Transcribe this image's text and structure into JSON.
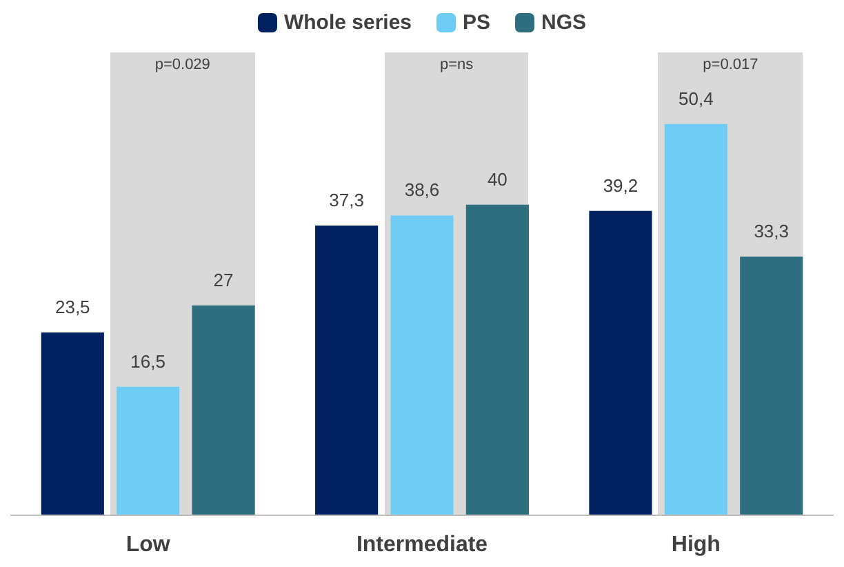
{
  "chart_data": {
    "type": "bar",
    "categories": [
      "Low",
      "Intermediate",
      "High"
    ],
    "series": [
      {
        "name": "Whole series",
        "color": "#002060",
        "values": [
          23.5,
          37.3,
          39.2
        ],
        "value_labels": [
          "23,5",
          "37,3",
          "39,2"
        ]
      },
      {
        "name": "PS",
        "color": "#6fcdf5",
        "values": [
          16.5,
          38.6,
          50.4
        ],
        "value_labels": [
          "16,5",
          "38,6",
          "50,4"
        ]
      },
      {
        "name": "NGS",
        "color": "#2e6e7e",
        "values": [
          27,
          40,
          33.3
        ],
        "value_labels": [
          "27",
          "40",
          "33,3"
        ]
      }
    ],
    "legend": "top",
    "bands": [
      {
        "axis": "x",
        "from": "Low",
        "to": "Low",
        "label": "p=0.029",
        "color": "#d9d9d9"
      },
      {
        "axis": "x",
        "from": "Intermediate",
        "to": "Intermediate",
        "label": "p=ns",
        "color": "#d9d9d9"
      },
      {
        "axis": "x",
        "from": "High",
        "to": "High",
        "label": "p=0.017",
        "color": "#d9d9d9"
      }
    ]
  }
}
